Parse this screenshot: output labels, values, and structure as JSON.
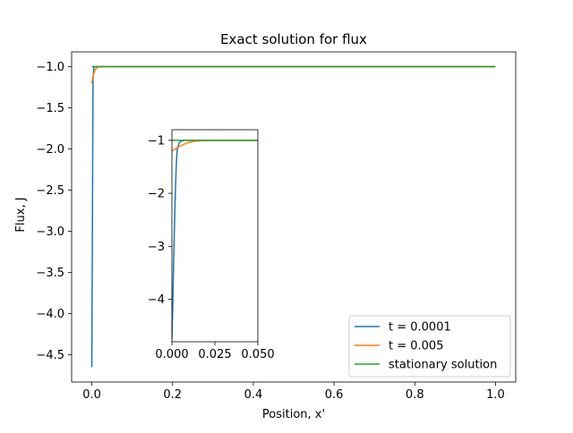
{
  "chart_data": [
    {
      "type": "line",
      "title": "Exact solution for flux",
      "xlabel": "Position, x'",
      "ylabel": "Flux, J",
      "xlim": [
        -0.05,
        1.05
      ],
      "ylim": [
        -4.83,
        -0.82
      ],
      "xticks": [
        0.0,
        0.2,
        0.4,
        0.6,
        0.8,
        1.0
      ],
      "xtick_labels": [
        "0.0",
        "0.2",
        "0.4",
        "0.6",
        "0.8",
        "1.0"
      ],
      "yticks": [
        -1.0,
        -1.5,
        -2.0,
        -2.5,
        -3.0,
        -3.5,
        -4.0,
        -4.5
      ],
      "ytick_labels": [
        "−1.0",
        "−1.5",
        "−2.0",
        "−2.5",
        "−3.0",
        "−3.5",
        "−4.0",
        "−4.5"
      ],
      "legend_position": "lower-right",
      "series": [
        {
          "name": "t = 0.0001",
          "color": "#1f77b4",
          "x": [
            0.0,
            0.003,
            0.005,
            0.01,
            0.02,
            0.05,
            0.1,
            0.2,
            0.4,
            0.6,
            0.8,
            1.0
          ],
          "y": [
            -4.65,
            -1.15,
            -1.0,
            -1.0,
            -1.0,
            -1.0,
            -1.0,
            -1.0,
            -1.0,
            -1.0,
            -1.0,
            -1.0
          ]
        },
        {
          "name": "t = 0.005",
          "color": "#ff7f0e",
          "x": [
            0.0,
            0.002,
            0.005,
            0.008,
            0.012,
            0.016,
            0.02,
            0.03,
            0.05,
            0.1,
            0.4,
            0.7,
            1.0
          ],
          "y": [
            -1.2,
            -1.14,
            -1.08,
            -1.04,
            -1.015,
            -1.005,
            -1.0,
            -1.0,
            -1.0,
            -1.0,
            -1.0,
            -1.0,
            -1.0
          ]
        },
        {
          "name": "stationary solution",
          "color": "#2ca02c",
          "x": [
            0.0,
            0.2,
            0.4,
            0.6,
            0.8,
            1.0
          ],
          "y": [
            -1.0,
            -1.0,
            -1.0,
            -1.0,
            -1.0,
            -1.0
          ]
        }
      ]
    },
    {
      "type": "line",
      "title": "",
      "xlim": [
        0.0,
        0.05
      ],
      "ylim": [
        -4.8,
        -0.8
      ],
      "xticks": [
        0.0,
        0.025,
        0.05
      ],
      "xtick_labels": [
        "0.000",
        "0.025",
        "0.050"
      ],
      "yticks": [
        -1,
        -2,
        -3,
        -4
      ],
      "ytick_labels": [
        "−1",
        "−2",
        "−3",
        "−4"
      ],
      "series": [
        {
          "name": "t = 0.0001",
          "color": "#1f77b4",
          "x": [
            0.0,
            0.0005,
            0.001,
            0.0015,
            0.002,
            0.0025,
            0.003,
            0.004,
            0.005,
            0.007,
            0.01,
            0.02,
            0.05
          ],
          "y": [
            -4.75,
            -4.1,
            -3.3,
            -2.6,
            -2.0,
            -1.5,
            -1.2,
            -1.06,
            -1.02,
            -1.0,
            -1.0,
            -1.0,
            -1.0
          ]
        },
        {
          "name": "t = 0.005",
          "color": "#ff7f0e",
          "x": [
            0.0,
            0.002,
            0.004,
            0.006,
            0.008,
            0.01,
            0.012,
            0.014,
            0.016,
            0.018,
            0.02,
            0.025,
            0.03,
            0.05
          ],
          "y": [
            -1.2,
            -1.16,
            -1.12,
            -1.09,
            -1.06,
            -1.04,
            -1.025,
            -1.015,
            -1.008,
            -1.004,
            -1.002,
            -1.0,
            -1.0,
            -1.0
          ]
        },
        {
          "name": "stationary solution",
          "color": "#2ca02c",
          "x": [
            0.0,
            0.01,
            0.02,
            0.03,
            0.04,
            0.05
          ],
          "y": [
            -1.0,
            -1.0,
            -1.0,
            -1.0,
            -1.0,
            -1.0
          ]
        }
      ]
    }
  ]
}
